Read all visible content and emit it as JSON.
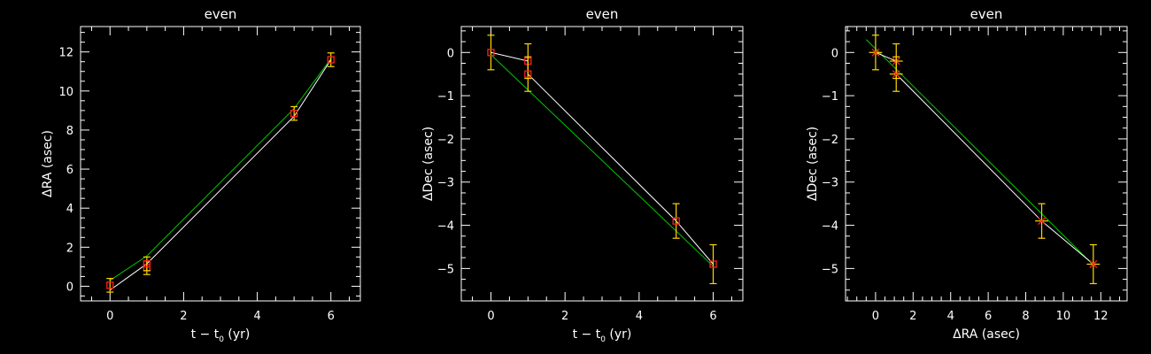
{
  "colors": {
    "background": "#000000",
    "axes": "#ffffff",
    "data_line": "#ffffff",
    "fit_line": "#00c800",
    "error_bar": "#ffd700",
    "marker": "#ff2020"
  },
  "chart_data": [
    {
      "type": "scatter",
      "title": "even",
      "xlabel": "t − t0 (yr)",
      "xlabel_main": "t − t",
      "xlabel_sub": "0",
      "xlabel_tail": " (yr)",
      "ylabel": "ΔRA (asec)",
      "xlim": [
        -0.8,
        6.8
      ],
      "ylim": [
        -0.75,
        13.3
      ],
      "xticks": [
        0,
        2,
        4,
        6
      ],
      "yticks": [
        0,
        2,
        4,
        6,
        8,
        10,
        12
      ],
      "marker": "square",
      "points": [
        {
          "x": 0,
          "y": 0.05,
          "yerr": 0.35
        },
        {
          "x": 1,
          "y": 0.95,
          "yerr": 0.35
        },
        {
          "x": 1,
          "y": 1.15,
          "yerr": 0.35
        },
        {
          "x": 5,
          "y": 8.85,
          "yerr": 0.35
        },
        {
          "x": 6,
          "y": 11.6,
          "yerr": 0.35
        }
      ],
      "data_line": [
        [
          0,
          -0.2
        ],
        [
          1,
          1.15
        ],
        [
          5,
          8.7
        ],
        [
          6,
          11.6
        ]
      ],
      "fit_line": [
        [
          0,
          0.3
        ],
        [
          1,
          1.55
        ],
        [
          5,
          9.1
        ],
        [
          6,
          11.65
        ]
      ]
    },
    {
      "type": "scatter",
      "title": "even",
      "xlabel": "t − t0 (yr)",
      "xlabel_main": "t − t",
      "xlabel_sub": "0",
      "xlabel_tail": " (yr)",
      "ylabel": "ΔDec (asec)",
      "xlim": [
        -0.8,
        6.8
      ],
      "ylim": [
        -5.75,
        0.6
      ],
      "xticks": [
        0,
        2,
        4,
        6
      ],
      "yticks": [
        0,
        -1,
        -2,
        -3,
        -4,
        -5
      ],
      "marker": "square",
      "points": [
        {
          "x": 0,
          "y": 0.0,
          "yerr": 0.4
        },
        {
          "x": 1,
          "y": -0.2,
          "yerr": 0.4
        },
        {
          "x": 1,
          "y": -0.5,
          "yerr": 0.4
        },
        {
          "x": 5,
          "y": -3.9,
          "yerr": 0.4
        },
        {
          "x": 6,
          "y": -4.9,
          "yerr": 0.45
        }
      ],
      "data_line": [
        [
          0,
          0.0
        ],
        [
          1,
          -0.2
        ],
        [
          1,
          -0.5
        ],
        [
          5,
          -3.9
        ],
        [
          6,
          -4.9
        ]
      ],
      "fit_line": [
        [
          0,
          -0.05
        ],
        [
          6,
          -4.95
        ]
      ]
    },
    {
      "type": "scatter",
      "title": "even",
      "xlabel": "ΔRA (asec)",
      "ylabel": "ΔDec (asec)",
      "xlim": [
        -1.6,
        13.4
      ],
      "ylim": [
        -5.75,
        0.6
      ],
      "xticks": [
        0,
        2,
        4,
        6,
        8,
        10,
        12
      ],
      "yticks": [
        0,
        -1,
        -2,
        -3,
        -4,
        -5
      ],
      "marker": "cross",
      "points": [
        {
          "x": 0,
          "y": 0.0,
          "xerr": 0.35,
          "yerr": 0.4
        },
        {
          "x": 1.1,
          "y": -0.2,
          "xerr": 0.35,
          "yerr": 0.4
        },
        {
          "x": 1.1,
          "y": -0.5,
          "xerr": 0.35,
          "yerr": 0.4
        },
        {
          "x": 8.85,
          "y": -3.9,
          "xerr": 0.35,
          "yerr": 0.4
        },
        {
          "x": 11.6,
          "y": -4.9,
          "xerr": 0.35,
          "yerr": 0.45
        }
      ],
      "data_line": [
        [
          0,
          0.0
        ],
        [
          1.1,
          -0.2
        ],
        [
          1.1,
          -0.5
        ],
        [
          8.85,
          -3.9
        ],
        [
          11.6,
          -4.9
        ]
      ],
      "fit_line": [
        [
          -0.5,
          0.3
        ],
        [
          11.6,
          -4.92
        ]
      ]
    }
  ]
}
